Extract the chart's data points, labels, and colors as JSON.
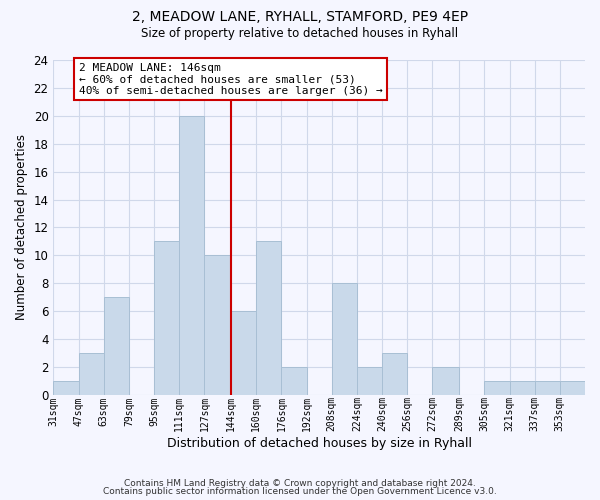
{
  "title": "2, MEADOW LANE, RYHALL, STAMFORD, PE9 4EP",
  "subtitle": "Size of property relative to detached houses in Ryhall",
  "xlabel": "Distribution of detached houses by size in Ryhall",
  "ylabel": "Number of detached properties",
  "bin_labels": [
    "31sqm",
    "47sqm",
    "63sqm",
    "79sqm",
    "95sqm",
    "111sqm",
    "127sqm",
    "144sqm",
    "160sqm",
    "176sqm",
    "192sqm",
    "208sqm",
    "224sqm",
    "240sqm",
    "256sqm",
    "272sqm",
    "289sqm",
    "305sqm",
    "321sqm",
    "337sqm",
    "353sqm"
  ],
  "bin_edges": [
    31,
    47,
    63,
    79,
    95,
    111,
    127,
    144,
    160,
    176,
    192,
    208,
    224,
    240,
    256,
    272,
    289,
    305,
    321,
    337,
    353,
    369
  ],
  "bar_heights": [
    1,
    3,
    7,
    0,
    11,
    20,
    10,
    6,
    11,
    2,
    0,
    8,
    2,
    3,
    0,
    2,
    0,
    1,
    1,
    1,
    1
  ],
  "bar_color": "#c9d9ea",
  "bar_edge_color": "#a8bfd4",
  "grid_color": "#d0d8ea",
  "vline_x": 144,
  "vline_color": "#cc0000",
  "annotation_box_text": "2 MEADOW LANE: 146sqm\n← 60% of detached houses are smaller (53)\n40% of semi-detached houses are larger (36) →",
  "annotation_box_color": "#ffffff",
  "annotation_box_edge_color": "#cc0000",
  "ylim": [
    0,
    24
  ],
  "yticks": [
    0,
    2,
    4,
    6,
    8,
    10,
    12,
    14,
    16,
    18,
    20,
    22,
    24
  ],
  "footnote1": "Contains HM Land Registry data © Crown copyright and database right 2024.",
  "footnote2": "Contains public sector information licensed under the Open Government Licence v3.0.",
  "background_color": "#f5f6ff"
}
